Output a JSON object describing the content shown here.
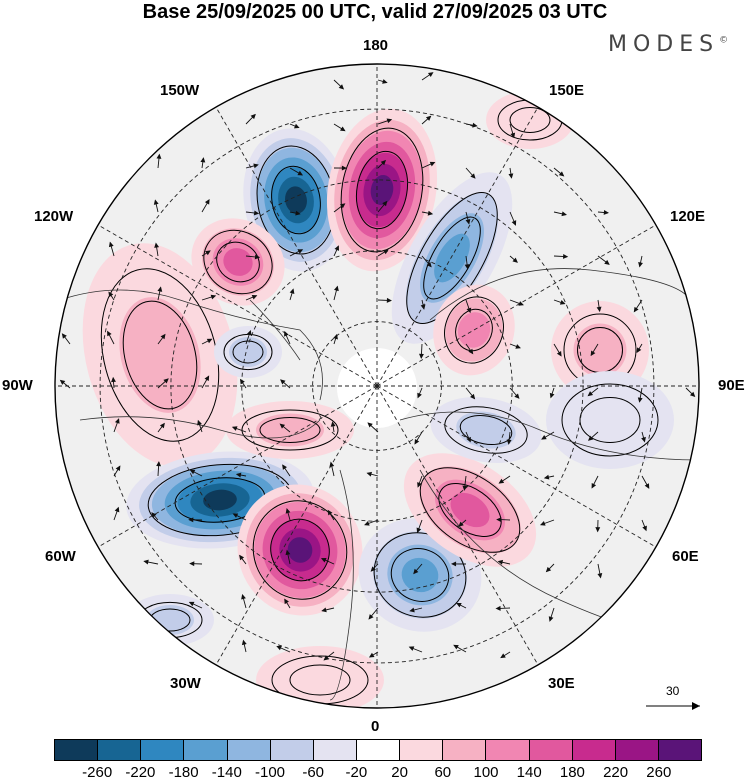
{
  "title": "Base 25/09/2025 00 UTC, valid 27/09/2025 03 UTC",
  "brand": "MODES",
  "brand_mark": "©",
  "longitude_labels": {
    "top": "180",
    "bottom": "0",
    "left": "90W",
    "right": "90E",
    "upper_left_outer": "150W",
    "upper_left": "120W",
    "lower_left": "60W",
    "lower_left_outer": "30W",
    "upper_right_outer": "150E",
    "upper_right": "120E",
    "lower_right": "60E",
    "lower_right_outer": "30E"
  },
  "reference_vector": {
    "label": "30"
  },
  "colorbar": {
    "colors": [
      "#0e3a5a",
      "#176593",
      "#2f87c0",
      "#5a9fd1",
      "#8fb6e0",
      "#c2cde9",
      "#e4e3f1",
      "#ffffff",
      "#fbd9df",
      "#f6b1c3",
      "#f186b2",
      "#e1589e",
      "#c82b8e",
      "#9a1585",
      "#5a1478"
    ],
    "ticks": [
      "-260",
      "-220",
      "-180",
      "-140",
      "-100",
      "-60",
      "-20",
      "20",
      "60",
      "100",
      "140",
      "180",
      "220",
      "260"
    ]
  }
}
